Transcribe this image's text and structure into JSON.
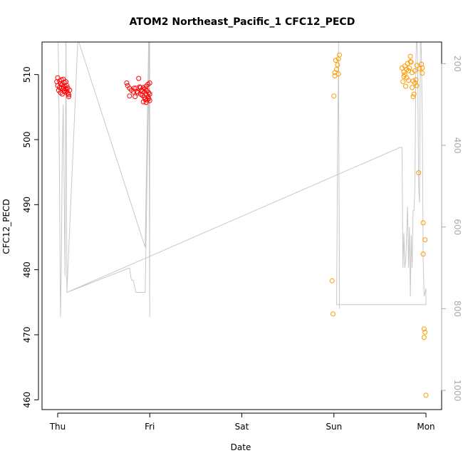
{
  "chart_data": {
    "type": "scatter",
    "title": "ATOM2 Northeast_Pacific_1 CFC12_PECD",
    "xlabel": "Date",
    "ylabel": "CFC12_PECD",
    "x_ticks": [
      "Thu",
      "Fri",
      "Sat",
      "Sun",
      "Mon"
    ],
    "y_ticks": [
      460,
      470,
      480,
      490,
      500,
      510
    ],
    "ylim": [
      458.5,
      515
    ],
    "xlim_days": [
      -0.17,
      4.17
    ],
    "y2_ticks": [
      200,
      400,
      600,
      800,
      1000
    ],
    "y2_lim_depth": [
      147,
      1047
    ],
    "grid": false,
    "colors": {
      "series_1": "#ff0000",
      "series_2": "#ff9900",
      "depth_line": "#c8c8c8"
    },
    "series": [
      {
        "values": [
          [
            0.0,
            509.5
          ],
          [
            0.0,
            508.3
          ],
          [
            0.01,
            507.6
          ],
          [
            0.02,
            508.0
          ],
          [
            0.02,
            509.0
          ],
          [
            0.03,
            508.6
          ],
          [
            0.03,
            507.2
          ],
          [
            0.04,
            507.9
          ],
          [
            0.05,
            508.4
          ],
          [
            0.05,
            507.0
          ],
          [
            0.06,
            508.1
          ],
          [
            0.06,
            509.3
          ],
          [
            0.07,
            507.5
          ],
          [
            0.07,
            508.8
          ],
          [
            0.08,
            507.3
          ],
          [
            0.08,
            508.2
          ],
          [
            0.09,
            507.8
          ],
          [
            0.09,
            508.9
          ],
          [
            0.1,
            507.4
          ],
          [
            0.1,
            508.3
          ],
          [
            0.11,
            507.1
          ],
          [
            0.11,
            507.9
          ],
          [
            0.12,
            506.6
          ],
          [
            0.12,
            506.9
          ],
          [
            0.13,
            507.6
          ],
          [
            -0.01,
            508.9
          ],
          [
            0.04,
            509.2
          ],
          [
            0.06,
            507.8
          ],
          [
            0.75,
            508.7
          ],
          [
            0.76,
            508.3
          ],
          [
            0.78,
            507.9
          ],
          [
            0.78,
            506.7
          ],
          [
            0.8,
            507.6
          ],
          [
            0.82,
            507.3
          ],
          [
            0.83,
            507.9
          ],
          [
            0.84,
            506.6
          ],
          [
            0.85,
            507.9
          ],
          [
            0.86,
            507.4
          ],
          [
            0.87,
            507.2
          ],
          [
            0.88,
            509.4
          ],
          [
            0.89,
            508.1
          ],
          [
            0.9,
            507.0
          ],
          [
            0.91,
            507.6
          ],
          [
            0.92,
            506.8
          ],
          [
            0.93,
            508.0
          ],
          [
            0.93,
            505.8
          ],
          [
            0.94,
            507.3
          ],
          [
            0.94,
            506.5
          ],
          [
            0.95,
            507.8
          ],
          [
            0.95,
            506.2
          ],
          [
            0.96,
            508.2
          ],
          [
            0.96,
            507.0
          ],
          [
            0.97,
            506.1
          ],
          [
            0.97,
            507.5
          ],
          [
            0.98,
            508.5
          ],
          [
            0.98,
            506.6
          ],
          [
            0.99,
            507.2
          ],
          [
            0.99,
            506.3
          ],
          [
            1.0,
            508.7
          ],
          [
            1.0,
            507.0
          ],
          [
            1.0,
            506.0
          ],
          [
            0.96,
            505.7
          ],
          [
            0.92,
            507.4
          ],
          [
            0.9,
            508.0
          ]
        ]
      },
      {
        "values": [
          [
            2.98,
            478.3
          ],
          [
            2.99,
            473.2
          ],
          [
            3.0,
            506.7
          ],
          [
            3.01,
            510.3
          ],
          [
            3.01,
            509.8
          ],
          [
            3.02,
            512.2
          ],
          [
            3.03,
            510.8
          ],
          [
            3.04,
            511.5
          ],
          [
            3.05,
            512.4
          ],
          [
            3.05,
            510.1
          ],
          [
            3.06,
            513.0
          ],
          [
            3.74,
            511.0
          ],
          [
            3.75,
            508.9
          ],
          [
            3.76,
            509.7
          ],
          [
            3.76,
            510.4
          ],
          [
            3.77,
            510.0
          ],
          [
            3.77,
            511.3
          ],
          [
            3.78,
            508.2
          ],
          [
            3.79,
            510.8
          ],
          [
            3.79,
            509.5
          ],
          [
            3.8,
            511.7
          ],
          [
            3.81,
            510.6
          ],
          [
            3.81,
            509.1
          ],
          [
            3.82,
            511.0
          ],
          [
            3.83,
            512.0
          ],
          [
            3.83,
            512.8
          ],
          [
            3.84,
            511.9
          ],
          [
            3.85,
            510.3
          ],
          [
            3.85,
            508.0
          ],
          [
            3.86,
            509.0
          ],
          [
            3.86,
            506.6
          ],
          [
            3.87,
            507.0
          ],
          [
            3.88,
            508.7
          ],
          [
            3.88,
            510.6
          ],
          [
            3.89,
            509.2
          ],
          [
            3.9,
            508.3
          ],
          [
            3.9,
            511.4
          ],
          [
            3.92,
            494.9
          ],
          [
            3.93,
            510.9
          ],
          [
            3.95,
            511.6
          ],
          [
            3.96,
            511.0
          ],
          [
            3.96,
            510.2
          ],
          [
            3.97,
            487.2
          ],
          [
            3.97,
            482.4
          ],
          [
            3.98,
            470.9
          ],
          [
            3.98,
            469.6
          ],
          [
            3.99,
            470.4
          ],
          [
            3.99,
            484.6
          ],
          [
            4.0,
            460.7
          ]
        ]
      }
    ],
    "depth_series": {
      "values": [
        [
          0.0,
          100
        ],
        [
          0.01,
          210
        ],
        [
          0.02,
          500
        ],
        [
          0.03,
          820
        ],
        [
          0.04,
          700
        ],
        [
          0.05,
          420
        ],
        [
          0.06,
          300
        ],
        [
          0.07,
          500
        ],
        [
          0.08,
          720
        ],
        [
          0.09,
          120
        ],
        [
          0.1,
          760
        ],
        [
          0.22,
          140
        ],
        [
          0.95,
          650
        ],
        [
          0.99,
          120
        ],
        [
          1.0,
          820
        ],
        [
          1.0,
          100
        ],
        [
          0.95,
          760
        ],
        [
          0.85,
          760
        ],
        [
          0.82,
          730
        ],
        [
          0.8,
          730
        ],
        [
          0.78,
          700
        ],
        [
          0.1,
          760
        ],
        [
          3.72,
          405
        ],
        [
          3.74,
          405
        ],
        [
          3.75,
          700
        ],
        [
          3.76,
          615
        ],
        [
          3.77,
          700
        ],
        [
          3.78,
          680
        ],
        [
          3.8,
          550
        ],
        [
          3.81,
          700
        ],
        [
          3.82,
          600
        ],
        [
          3.83,
          770
        ],
        [
          3.84,
          620
        ],
        [
          3.85,
          700
        ],
        [
          3.86,
          560
        ],
        [
          3.87,
          560
        ],
        [
          3.88,
          500
        ],
        [
          3.89,
          200
        ],
        [
          3.9,
          110
        ],
        [
          3.91,
          200
        ],
        [
          3.92,
          500
        ],
        [
          3.93,
          540
        ],
        [
          3.94,
          100
        ],
        [
          3.95,
          180
        ],
        [
          3.96,
          350
        ],
        [
          3.97,
          680
        ],
        [
          3.98,
          770
        ],
        [
          3.99,
          760
        ],
        [
          4.0,
          750
        ],
        [
          4.0,
          790
        ],
        [
          3.03,
          790
        ],
        [
          3.03,
          780
        ],
        [
          3.04,
          400
        ],
        [
          3.05,
          200
        ],
        [
          3.06,
          700
        ],
        [
          3.06,
          800
        ],
        [
          3.05,
          120
        ],
        [
          3.04,
          100
        ]
      ]
    }
  }
}
